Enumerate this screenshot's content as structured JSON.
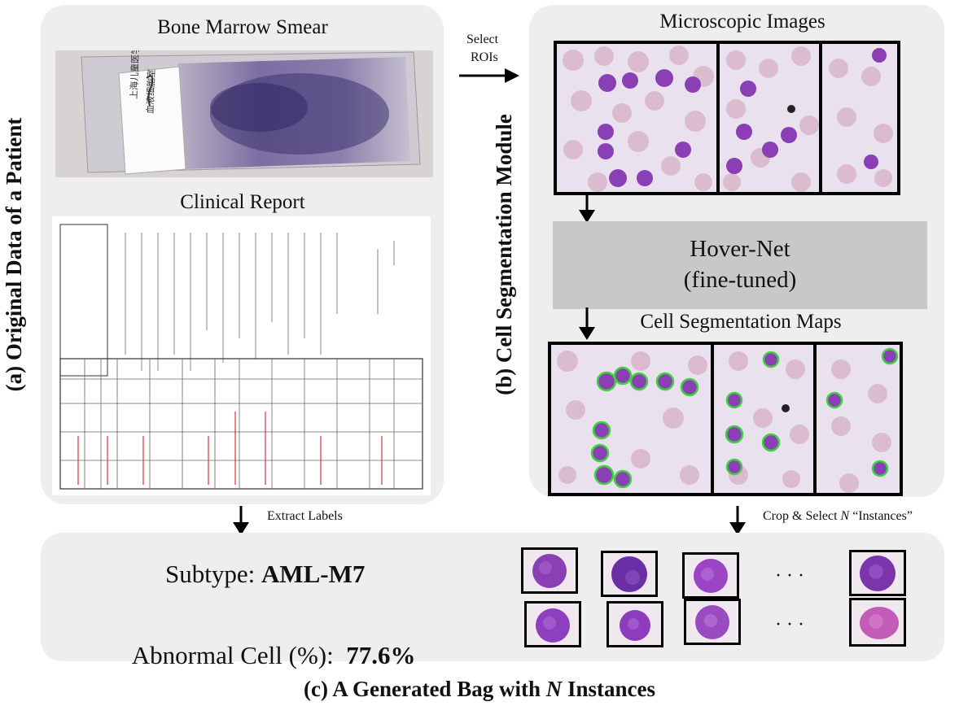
{
  "panel_a": {
    "vertical_title": "(a) Original Data of a Patient",
    "smear_title": "Bone Marrow Smear",
    "report_title": "Clinical Report",
    "slide_label_line1": "上海儿童医学中心",
    "slide_label_line2": "血液细胞室"
  },
  "panel_b": {
    "vertical_title": "(b) Cell Segmentation Module",
    "micro_title": "Microscopic Images",
    "model_line1": "Hover-Net",
    "model_line2": "(fine-tuned)",
    "seg_title": "Cell Segmentation Maps"
  },
  "arrows": {
    "select_line1": "Select",
    "select_line2": "ROIs",
    "extract": "Extract Labels",
    "crop_prefix": "Crop & Select ",
    "crop_n": "N",
    "crop_suffix": " “Instances”"
  },
  "panel_c": {
    "subtype_label": "Subtype: ",
    "subtype_value": "AML-M7",
    "abnormal_label": "Abnormal Cell (%):  ",
    "abnormal_value": "77.6%",
    "ellipsis": "· · ·",
    "caption_prefix": "(c) A Generated Bag with ",
    "caption_n": "N",
    "caption_suffix": " Instances"
  },
  "colors": {
    "panel_bg": "#eeeeee",
    "model_box": "#c8c8c8",
    "cell_purple": "#8a3fb5",
    "contour_green": "#3fd23f"
  }
}
